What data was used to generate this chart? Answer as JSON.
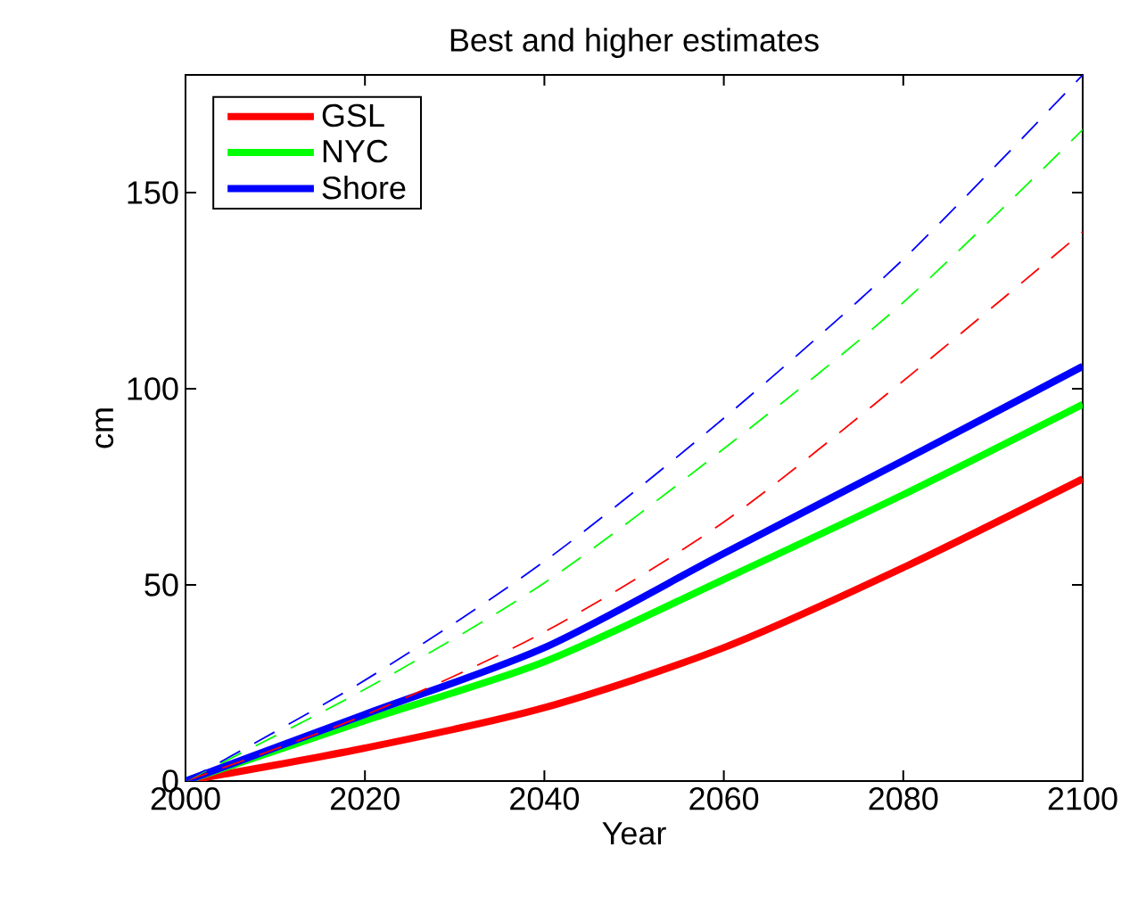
{
  "chart_data": {
    "type": "line",
    "title": "Best and higher estimates",
    "xlabel": "Year",
    "ylabel": "cm",
    "x": [
      2000,
      2020,
      2040,
      2060,
      2080,
      2100
    ],
    "series": [
      {
        "name": "GSL",
        "color": "#ff0000",
        "line_style": "solid",
        "values": [
          0,
          8.4,
          18.7,
          34,
          54.4,
          77
        ]
      },
      {
        "name": "NYC",
        "color": "#00ff00",
        "line_style": "solid",
        "values": [
          0,
          15.4,
          30.4,
          51.4,
          73,
          96
        ]
      },
      {
        "name": "Shore",
        "color": "#0000ff",
        "line_style": "solid",
        "values": [
          0,
          17,
          34,
          58,
          81.7,
          105.7
        ]
      },
      {
        "color": "#ff0000",
        "line_style": "dashed",
        "values": [
          0,
          16.8,
          38,
          66,
          102,
          140
        ]
      },
      {
        "color": "#00ff00",
        "line_style": "dashed",
        "values": [
          0,
          23.4,
          50.5,
          84.7,
          122,
          166
        ]
      },
      {
        "color": "#0000ff",
        "line_style": "dashed",
        "values": [
          0,
          25.7,
          56,
          92.5,
          133,
          180
        ]
      }
    ],
    "xlim": [
      2000,
      2100
    ],
    "xticks": [
      2000,
      2020,
      2040,
      2060,
      2080,
      2100
    ],
    "ylim": [
      0,
      180
    ],
    "yticks": [
      0,
      50,
      100,
      150
    ],
    "grid": false,
    "legend": "top left",
    "marker": "none"
  }
}
